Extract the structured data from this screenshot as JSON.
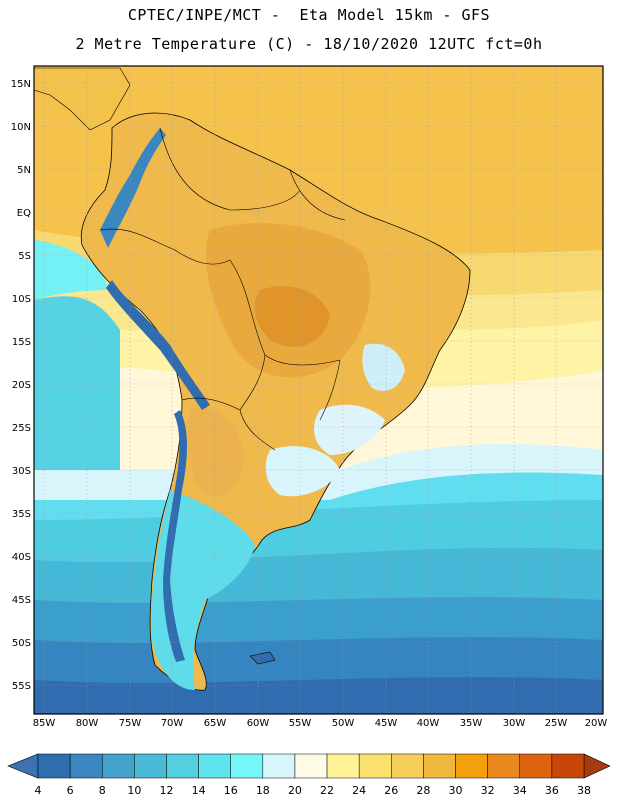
{
  "header": {
    "title_line1": "CPTEC/INPE/MCT -  Eta Model 15km - GFS",
    "title_line2": "2 Metre Temperature (C) - 18/10/2020 12UTC fct=0h"
  },
  "map": {
    "lat_labels": [
      "15N",
      "10N",
      "5N",
      "EQ",
      "5S",
      "10S",
      "15S",
      "20S",
      "25S",
      "30S",
      "35S",
      "40S",
      "45S",
      "50S",
      "55S"
    ],
    "lon_labels": [
      "85W",
      "80W",
      "75W",
      "70W",
      "65W",
      "60W",
      "55W",
      "50W",
      "45W",
      "40W",
      "35W",
      "30W",
      "25W",
      "20W"
    ]
  },
  "colorbar": {
    "labels": [
      "4",
      "6",
      "8",
      "10",
      "12",
      "14",
      "16",
      "18",
      "20",
      "22",
      "24",
      "26",
      "28",
      "30",
      "32",
      "34",
      "36",
      "38"
    ],
    "colors": [
      "#3d72b0",
      "#2f6fb0",
      "#3a86c0",
      "#44a3cc",
      "#4bbad6",
      "#53cfe0",
      "#5fe3ec",
      "#74f7f7",
      "#d7f6fb",
      "#fff9e8",
      "#fff395",
      "#fbe16e",
      "#f5cf5a",
      "#efb93e",
      "#f2a10c",
      "#e8881f",
      "#dc640f",
      "#c84608",
      "#a63a10"
    ]
  },
  "colors": {
    "ocean_warm": "#f6cd58",
    "ocean_mild": "#fff5c8",
    "ocean_cool": "#56d0df",
    "ocean_cold": "#2f6db0",
    "land_hot": "#e8a63a",
    "andes": "#2f6db0"
  }
}
